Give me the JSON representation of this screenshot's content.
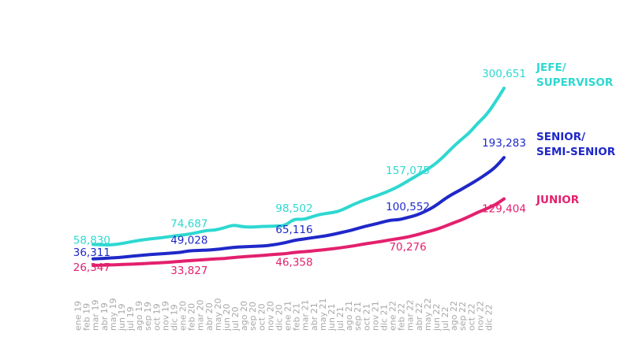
{
  "chart_data": {
    "type": "line",
    "title": "",
    "xlabel": "",
    "ylabel": "",
    "ylim": [
      20000,
      320000
    ],
    "grid": false,
    "categories": [
      "ene 19",
      "feb 19",
      "mar 19",
      "abr 19",
      "may 19",
      "jun 19",
      "jul 19",
      "ago 19",
      "sep 19",
      "oct 19",
      "nov 19",
      "dic 19",
      "ene 20",
      "feb 20",
      "mar 20",
      "abr 20",
      "may 20",
      "jun 20",
      "jul 20",
      "ago 20",
      "sep 20",
      "oct 20",
      "nov 20",
      "dic 20",
      "ene 21",
      "feb 21",
      "mar 21",
      "abr 21",
      "may 21",
      "jun 21",
      "jul 21",
      "ago 21",
      "sep 21",
      "oct 21",
      "nov 21",
      "dic 21",
      "ene 22",
      "feb 22",
      "mar 22",
      "abr 22",
      "may 22",
      "jun 22",
      "jul 22",
      "ago 22",
      "sep 22",
      "oct 22",
      "nov 22",
      "dic 22"
    ],
    "series": [
      {
        "name": "JEFE/ SUPERVISOR",
        "legend_lines": [
          "JEFE/",
          "SUPERVISOR"
        ],
        "color": "#2ed8d1",
        "values": [
          58830,
          58200,
          58000,
          59500,
          62000,
          64500,
          66500,
          68000,
          69500,
          71500,
          73000,
          74687,
          77500,
          80500,
          81000,
          84500,
          89000,
          86500,
          85500,
          86500,
          86800,
          87300,
          88000,
          98502,
          97000,
          101500,
          105500,
          107500,
          109500,
          115500,
          122000,
          127500,
          132000,
          137000,
          142500,
          149000,
          157075,
          165000,
          173000,
          182000,
          193500,
          207500,
          220000,
          231000,
          246500,
          259500,
          279000,
          300651
        ],
        "labels": [
          {
            "index": 0,
            "text": "58,830"
          },
          {
            "index": 11,
            "text": "74,687"
          },
          {
            "index": 23,
            "text": "98,502"
          },
          {
            "index": 36,
            "text": "157,075"
          },
          {
            "index": 47,
            "text": "300,651"
          }
        ]
      },
      {
        "name": "SENIOR/ SEMI-SENIOR",
        "legend_lines": [
          "SENIOR/",
          "SEMI-SENIOR"
        ],
        "color": "#1f28c8",
        "values": [
          36311,
          37000,
          37800,
          38500,
          40000,
          41500,
          42500,
          43500,
          44500,
          45500,
          46500,
          49028,
          49500,
          50000,
          51000,
          52500,
          54000,
          55200,
          55600,
          56200,
          57000,
          59000,
          61500,
          65116,
          67000,
          69000,
          71000,
          73000,
          76000,
          79000,
          82500,
          86500,
          89500,
          93000,
          96500,
          97000,
          100552,
          104000,
          110000,
          117000,
          127000,
          136000,
          143000,
          151000,
          159000,
          168000,
          178000,
          193283
        ],
        "labels": [
          {
            "index": 0,
            "text": "36,311"
          },
          {
            "index": 11,
            "text": "49,028"
          },
          {
            "index": 23,
            "text": "65,116"
          },
          {
            "index": 36,
            "text": "100,552"
          },
          {
            "index": 47,
            "text": "193,283"
          }
        ]
      },
      {
        "name": "JUNIOR",
        "legend_lines": [
          "JUNIOR"
        ],
        "color": "#e3206d",
        "values": [
          26347,
          26700,
          27000,
          27500,
          28000,
          28600,
          29200,
          30000,
          30700,
          31500,
          32600,
          33827,
          34500,
          35500,
          36500,
          37000,
          38500,
          39500,
          40500,
          41500,
          42500,
          43500,
          44500,
          46358,
          47500,
          48700,
          50000,
          51500,
          53000,
          55000,
          57000,
          59500,
          61500,
          63500,
          66000,
          68000,
          70276,
          73500,
          77500,
          81000,
          85500,
          91000,
          96000,
          102000,
          108500,
          114000,
          120000,
          129404
        ],
        "labels": [
          {
            "index": 0,
            "text": "26,347"
          },
          {
            "index": 11,
            "text": "33,827"
          },
          {
            "index": 23,
            "text": "46,358"
          },
          {
            "index": 36,
            "text": "70,276"
          },
          {
            "index": 47,
            "text": "129,404"
          }
        ]
      }
    ]
  }
}
